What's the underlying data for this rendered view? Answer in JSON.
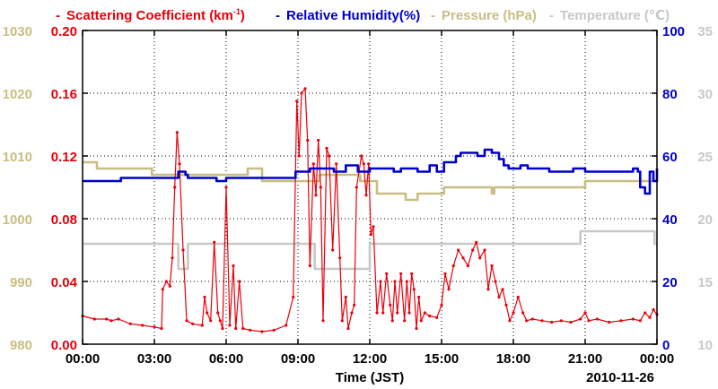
{
  "chart_data": {
    "type": "line",
    "title": "",
    "date_label": "2010-11-26",
    "xlabel": "Time (JST)",
    "x_unit": "hours",
    "x_range": [
      0,
      24
    ],
    "x_ticks": [
      0,
      3,
      6,
      9,
      12,
      15,
      18,
      21,
      24
    ],
    "x_tick_labels": [
      "00:00",
      "03:00",
      "06:00",
      "09:00",
      "12:00",
      "15:00",
      "18:00",
      "21:00",
      "00:00"
    ],
    "legend": {
      "placement": "top",
      "items": [
        {
          "text": "Scattering Coefficient (km",
          "superscript": "-1",
          "suffix": ")",
          "color": "#e8000b"
        },
        {
          "text": "Relative Humidity(%)",
          "color": "#0000cc"
        },
        {
          "text": "Pressure (hPa)",
          "color": "#c8be82"
        },
        {
          "text": "Temperature (℃)",
          "color": "#c8c8c8"
        }
      ]
    },
    "axes": {
      "left_outer": {
        "label": "Pressure (hPa)",
        "range": [
          980,
          1030
        ],
        "ticks": [
          "980",
          "990",
          "1000",
          "1010",
          "1020",
          "1030"
        ],
        "color": "#c8be82"
      },
      "left_inner": {
        "label": "Scattering Coefficient",
        "range": [
          0,
          0.2
        ],
        "ticks": [
          "0.00",
          "0.04",
          "0.08",
          "0.12",
          "0.16",
          "0.20"
        ],
        "color": "#e8000b"
      },
      "right_inner": {
        "label": "Relative Humidity",
        "range": [
          0,
          100
        ],
        "ticks": [
          "0",
          "20",
          "40",
          "60",
          "80",
          "100"
        ],
        "color": "#0000cc"
      },
      "right_outer": {
        "label": "Temperature",
        "range": [
          10,
          35
        ],
        "ticks": [
          "10",
          "15",
          "20",
          "25",
          "30",
          "35"
        ],
        "color": "#c8c8c8"
      }
    },
    "grid": true,
    "series": [
      {
        "name": "Scattering Coefficient",
        "axis": "left_inner",
        "color": "#e8000b",
        "markers": true,
        "points": [
          [
            0,
            0.018
          ],
          [
            0.5,
            0.016
          ],
          [
            1,
            0.016
          ],
          [
            1.2,
            0.015
          ],
          [
            1.5,
            0.016
          ],
          [
            2,
            0.013
          ],
          [
            2.5,
            0.012
          ],
          [
            3,
            0.011
          ],
          [
            3.3,
            0.01
          ],
          [
            3.35,
            0.035
          ],
          [
            3.5,
            0.04
          ],
          [
            3.65,
            0.037
          ],
          [
            3.75,
            0.055
          ],
          [
            3.85,
            0.1
          ],
          [
            3.95,
            0.135
          ],
          [
            4.05,
            0.115
          ],
          [
            4.2,
            0.06
          ],
          [
            4.35,
            0.015
          ],
          [
            4.6,
            0.013
          ],
          [
            5.0,
            0.012
          ],
          [
            5.1,
            0.03
          ],
          [
            5.2,
            0.02
          ],
          [
            5.35,
            0.015
          ],
          [
            5.5,
            0.065
          ],
          [
            5.65,
            0.02
          ],
          [
            5.75,
            0.015
          ],
          [
            5.85,
            0.01
          ],
          [
            6.0,
            0.1
          ],
          [
            6.15,
            0.012
          ],
          [
            6.3,
            0.05
          ],
          [
            6.4,
            0.01
          ],
          [
            6.55,
            0.04
          ],
          [
            6.7,
            0.01
          ],
          [
            7.0,
            0.009
          ],
          [
            7.5,
            0.008
          ],
          [
            8.0,
            0.009
          ],
          [
            8.5,
            0.012
          ],
          [
            8.8,
            0.03
          ],
          [
            8.95,
            0.155
          ],
          [
            9.05,
            0.12
          ],
          [
            9.15,
            0.16
          ],
          [
            9.3,
            0.163
          ],
          [
            9.4,
            0.13
          ],
          [
            9.5,
            0.05
          ],
          [
            9.65,
            0.115
          ],
          [
            9.75,
            0.095
          ],
          [
            9.85,
            0.13
          ],
          [
            9.95,
            0.1
          ],
          [
            10.05,
            0.015
          ],
          [
            10.2,
            0.125
          ],
          [
            10.3,
            0.12
          ],
          [
            10.45,
            0.06
          ],
          [
            10.6,
            0.115
          ],
          [
            10.75,
            0.055
          ],
          [
            10.85,
            0.015
          ],
          [
            11.0,
            0.03
          ],
          [
            11.1,
            0.01
          ],
          [
            11.25,
            0.02
          ],
          [
            11.35,
            0.025
          ],
          [
            11.45,
            0.1
          ],
          [
            11.55,
            0.11
          ],
          [
            11.65,
            0.12
          ],
          [
            11.75,
            0.115
          ],
          [
            11.85,
            0.095
          ],
          [
            11.95,
            0.115
          ],
          [
            12.05,
            0.07
          ],
          [
            12.15,
            0.075
          ],
          [
            12.3,
            0.02
          ],
          [
            12.45,
            0.04
          ],
          [
            12.55,
            0.02
          ],
          [
            12.7,
            0.045
          ],
          [
            12.85,
            0.025
          ],
          [
            12.95,
            0.015
          ],
          [
            13.05,
            0.04
          ],
          [
            13.15,
            0.02
          ],
          [
            13.3,
            0.045
          ],
          [
            13.45,
            0.015
          ],
          [
            13.55,
            0.04
          ],
          [
            13.65,
            0.02
          ],
          [
            13.75,
            0.045
          ],
          [
            13.85,
            0.035
          ],
          [
            13.95,
            0.01
          ],
          [
            14.05,
            0.03
          ],
          [
            14.15,
            0.015
          ],
          [
            14.3,
            0.02
          ],
          [
            14.5,
            0.018
          ],
          [
            14.8,
            0.017
          ],
          [
            15.0,
            0.025
          ],
          [
            15.15,
            0.045
          ],
          [
            15.3,
            0.035
          ],
          [
            15.5,
            0.05
          ],
          [
            15.7,
            0.06
          ],
          [
            15.9,
            0.055
          ],
          [
            16.1,
            0.05
          ],
          [
            16.3,
            0.06
          ],
          [
            16.45,
            0.065
          ],
          [
            16.6,
            0.055
          ],
          [
            16.8,
            0.06
          ],
          [
            16.95,
            0.035
          ],
          [
            17.1,
            0.05
          ],
          [
            17.25,
            0.04
          ],
          [
            17.4,
            0.03
          ],
          [
            17.55,
            0.035
          ],
          [
            17.7,
            0.025
          ],
          [
            17.85,
            0.015
          ],
          [
            18.0,
            0.02
          ],
          [
            18.2,
            0.03
          ],
          [
            18.4,
            0.02
          ],
          [
            18.55,
            0.015
          ],
          [
            18.8,
            0.016
          ],
          [
            19.2,
            0.015
          ],
          [
            19.6,
            0.014
          ],
          [
            20.0,
            0.015
          ],
          [
            20.4,
            0.014
          ],
          [
            20.8,
            0.016
          ],
          [
            21.0,
            0.02
          ],
          [
            21.15,
            0.015
          ],
          [
            21.5,
            0.016
          ],
          [
            22.0,
            0.014
          ],
          [
            22.5,
            0.015
          ],
          [
            23.0,
            0.016
          ],
          [
            23.3,
            0.015
          ],
          [
            23.5,
            0.02
          ],
          [
            23.7,
            0.017
          ],
          [
            23.85,
            0.022
          ],
          [
            24.0,
            0.019
          ]
        ]
      },
      {
        "name": "Relative Humidity",
        "axis": "right_inner",
        "color": "#0000cc",
        "markers": false,
        "points": [
          [
            0,
            52
          ],
          [
            1.5,
            52
          ],
          [
            1.6,
            53
          ],
          [
            3.9,
            53
          ],
          [
            4.0,
            55
          ],
          [
            4.3,
            54
          ],
          [
            4.4,
            53
          ],
          [
            5.5,
            53
          ],
          [
            5.6,
            52
          ],
          [
            6.0,
            53
          ],
          [
            8.8,
            53
          ],
          [
            8.9,
            55
          ],
          [
            9.5,
            56
          ],
          [
            10.5,
            55
          ],
          [
            11.0,
            57
          ],
          [
            11.5,
            55
          ],
          [
            12.0,
            56
          ],
          [
            13.0,
            55
          ],
          [
            13.3,
            56
          ],
          [
            14.0,
            55
          ],
          [
            14.5,
            57
          ],
          [
            14.8,
            55
          ],
          [
            15.0,
            55
          ],
          [
            15.1,
            58
          ],
          [
            15.6,
            60
          ],
          [
            15.8,
            61
          ],
          [
            16.5,
            60
          ],
          [
            16.8,
            62
          ],
          [
            17.1,
            61
          ],
          [
            17.4,
            59
          ],
          [
            17.6,
            57
          ],
          [
            17.8,
            56
          ],
          [
            18.3,
            57
          ],
          [
            18.6,
            56
          ],
          [
            19.5,
            55
          ],
          [
            20.5,
            56
          ],
          [
            21.0,
            55
          ],
          [
            22.8,
            55
          ],
          [
            23.0,
            56
          ],
          [
            23.2,
            55
          ],
          [
            23.3,
            50
          ],
          [
            23.5,
            48
          ],
          [
            23.7,
            55
          ],
          [
            23.85,
            52
          ],
          [
            24.0,
            56
          ]
        ]
      },
      {
        "name": "Pressure",
        "axis": "left_outer",
        "color": "#c8be82",
        "markers": false,
        "points": [
          [
            0,
            1009
          ],
          [
            0.5,
            1009
          ],
          [
            0.6,
            1008
          ],
          [
            2.8,
            1008
          ],
          [
            2.9,
            1007
          ],
          [
            6.8,
            1007
          ],
          [
            6.9,
            1008
          ],
          [
            7.4,
            1008
          ],
          [
            7.5,
            1006
          ],
          [
            9.8,
            1006
          ],
          [
            9.9,
            1007
          ],
          [
            11.5,
            1007
          ],
          [
            11.6,
            1006
          ],
          [
            12.2,
            1006
          ],
          [
            12.3,
            1004
          ],
          [
            13.3,
            1004
          ],
          [
            13.5,
            1003
          ],
          [
            14.0,
            1004
          ],
          [
            15.0,
            1004
          ],
          [
            15.1,
            1005
          ],
          [
            17.0,
            1005
          ],
          [
            17.1,
            1004
          ],
          [
            17.2,
            1005
          ],
          [
            20.9,
            1005
          ],
          [
            21.0,
            1006
          ],
          [
            24.0,
            1006
          ]
        ]
      },
      {
        "name": "Temperature",
        "axis": "right_outer",
        "color": "#c8c8c8",
        "markers": false,
        "points": [
          [
            0,
            18
          ],
          [
            3.9,
            18
          ],
          [
            4.0,
            16
          ],
          [
            4.3,
            16
          ],
          [
            4.4,
            18
          ],
          [
            9.6,
            18
          ],
          [
            9.7,
            16
          ],
          [
            11.9,
            16
          ],
          [
            12.0,
            18
          ],
          [
            20.7,
            18
          ],
          [
            20.8,
            19
          ],
          [
            23.8,
            19
          ],
          [
            23.9,
            18
          ],
          [
            24.0,
            18
          ]
        ]
      }
    ]
  }
}
